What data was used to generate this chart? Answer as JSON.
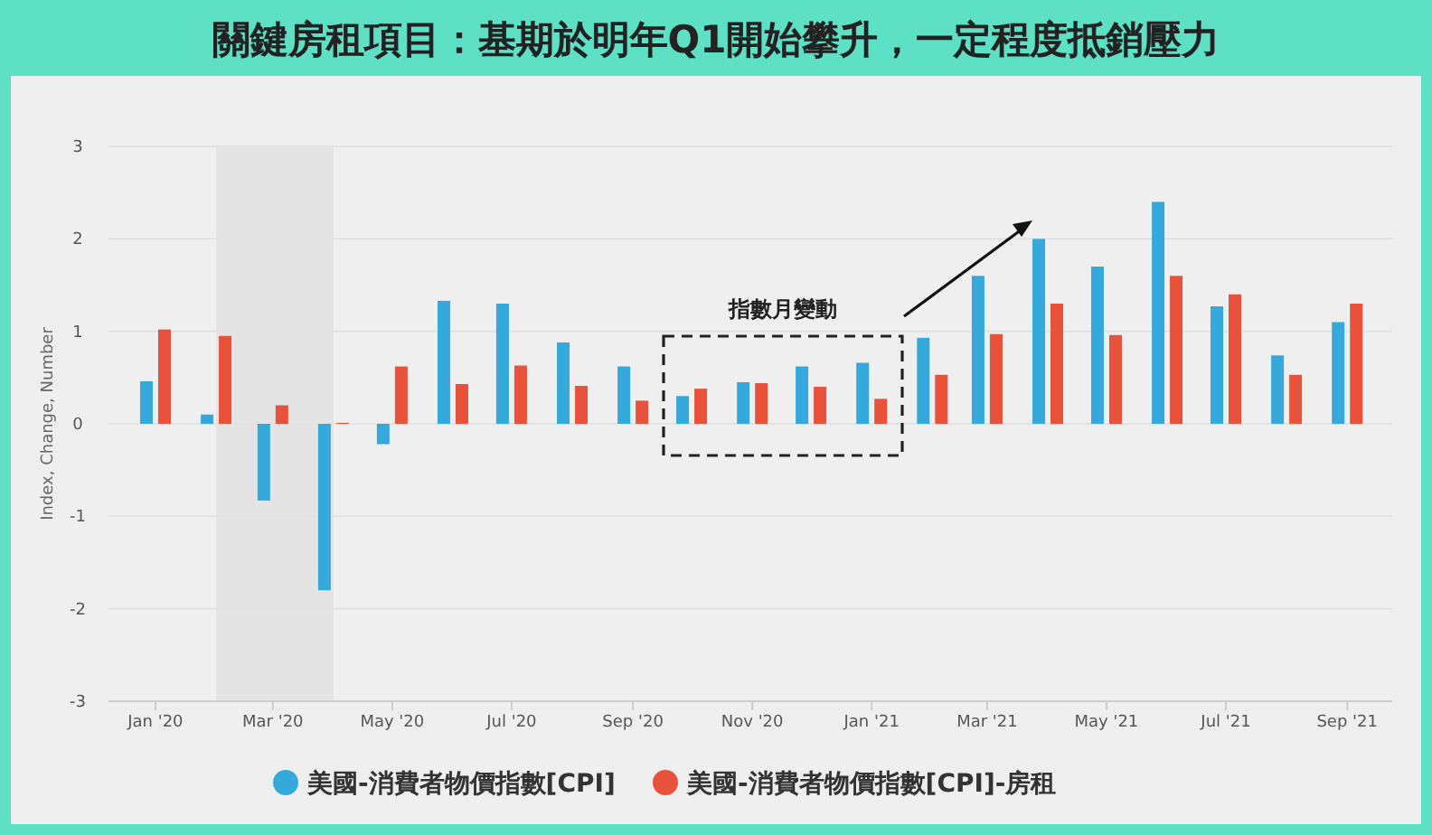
{
  "chart_data": {
    "type": "bar",
    "title": "關鍵房租項目：基期於明年Q1開始攀升，一定程度抵銷壓力",
    "ylabel": "Index, Change, Number",
    "x": [
      "2020-01",
      "2020-02",
      "2020-03",
      "2020-04",
      "2020-05",
      "2020-06",
      "2020-07",
      "2020-08",
      "2020-09",
      "2020-10",
      "2020-11",
      "2020-12",
      "2021-01",
      "2021-02",
      "2021-03",
      "2021-04",
      "2021-05",
      "2021-06",
      "2021-07",
      "2021-08",
      "2021-09"
    ],
    "series": [
      {
        "name": "美國-消費者物價指數[CPI]",
        "color": "#35a9dc",
        "values": [
          0.46,
          0.1,
          -0.83,
          -1.8,
          -0.22,
          1.33,
          1.3,
          0.88,
          0.62,
          0.3,
          0.45,
          0.62,
          0.66,
          0.93,
          1.6,
          2.0,
          1.7,
          2.4,
          1.27,
          0.74,
          1.1
        ]
      },
      {
        "name": "美國-消費者物價指數[CPI]-房租",
        "color": "#e8513a",
        "values": [
          1.02,
          0.95,
          0.2,
          0.01,
          0.62,
          0.43,
          0.63,
          0.41,
          0.25,
          0.38,
          0.44,
          0.4,
          0.27,
          0.53,
          0.97,
          1.3,
          0.96,
          1.6,
          1.4,
          0.53,
          1.3
        ]
      }
    ],
    "xlim": [
      "2019-12-08",
      "2021-09-24"
    ],
    "xticks": [
      {
        "value": "2020-01",
        "label": "Jan '20"
      },
      {
        "value": "2020-03",
        "label": "Mar '20"
      },
      {
        "value": "2020-05",
        "label": "May '20"
      },
      {
        "value": "2020-07",
        "label": "Jul '20"
      },
      {
        "value": "2020-09",
        "label": "Sep '20"
      },
      {
        "value": "2020-11",
        "label": "Nov '20"
      },
      {
        "value": "2021-01",
        "label": "Jan '21"
      },
      {
        "value": "2021-03",
        "label": "Mar '21"
      },
      {
        "value": "2021-05",
        "label": "May '21"
      },
      {
        "value": "2021-07",
        "label": "Jul '21"
      },
      {
        "value": "2021-09",
        "label": "Sep '21"
      }
    ],
    "ylim": [
      -3,
      3
    ],
    "yticks": [
      -3,
      -2,
      -1,
      0,
      1,
      2,
      3
    ],
    "grid": "y",
    "bands": [
      {
        "axis": "x",
        "from": "2020-02",
        "to": "2020-04",
        "color": "#e4e4e4"
      }
    ],
    "annotations": [
      "指數月變動"
    ],
    "legend": "bottom"
  }
}
